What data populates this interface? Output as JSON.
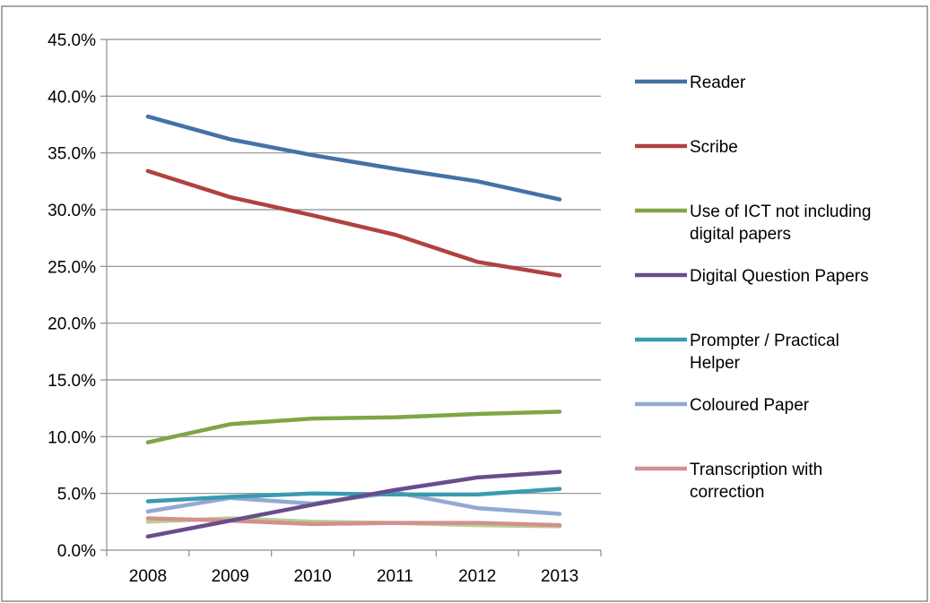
{
  "chart_data": {
    "type": "line",
    "title": "",
    "xlabel": "",
    "ylabel": "",
    "categories": [
      "2008",
      "2009",
      "2010",
      "2011",
      "2012",
      "2013"
    ],
    "ylim": [
      0,
      45
    ],
    "ytick_step": 5,
    "ytick_format": "percent_1dp",
    "y_tick_labels": [
      "0.0%",
      "5.0%",
      "10.0%",
      "15.0%",
      "20.0%",
      "25.0%",
      "30.0%",
      "35.0%",
      "40.0%",
      "45.0%"
    ],
    "grid": true,
    "legend_position": "right",
    "series": [
      {
        "name": "Reader",
        "legend_lines": [
          "Reader"
        ],
        "color": "#4472A8",
        "values": [
          38.2,
          36.2,
          34.8,
          33.6,
          32.5,
          30.9
        ]
      },
      {
        "name": "Scribe",
        "legend_lines": [
          "Scribe"
        ],
        "color": "#B0423F",
        "values": [
          33.4,
          31.1,
          29.5,
          27.8,
          25.4,
          24.2
        ]
      },
      {
        "name": "Use of ICT not including digital papers",
        "legend_lines": [
          "Use of ICT not including",
          "digital papers"
        ],
        "color": "#7FA645",
        "values": [
          9.5,
          11.1,
          11.6,
          11.7,
          12.0,
          12.2
        ]
      },
      {
        "name": "Digital Question Papers",
        "legend_lines": [
          "Digital Question Papers"
        ],
        "color": "#6A4C8C",
        "values": [
          1.2,
          2.6,
          4.0,
          5.3,
          6.4,
          6.9
        ]
      },
      {
        "name": "Prompter / Practical Helper",
        "legend_lines": [
          "Prompter / Practical",
          "Helper"
        ],
        "color": "#3A9BB0",
        "values": [
          4.3,
          4.7,
          5.0,
          4.9,
          4.9,
          5.4
        ]
      },
      {
        "name": "Coloured Paper",
        "legend_lines": [
          "Coloured Paper"
        ],
        "color": "#93A9D1",
        "values": [
          3.4,
          4.6,
          4.1,
          5.1,
          3.7,
          3.2
        ]
      },
      {
        "name": "Transcription with correction",
        "legend_lines": [
          "Transcription with",
          "correction"
        ],
        "color": "#D48F8F",
        "values": [
          2.8,
          2.6,
          2.3,
          2.4,
          2.4,
          2.2
        ]
      },
      {
        "name": "",
        "legend_lines": [],
        "color": "#B8CF92",
        "values": [
          2.5,
          2.8,
          2.5,
          2.4,
          2.2,
          2.1
        ]
      }
    ]
  }
}
